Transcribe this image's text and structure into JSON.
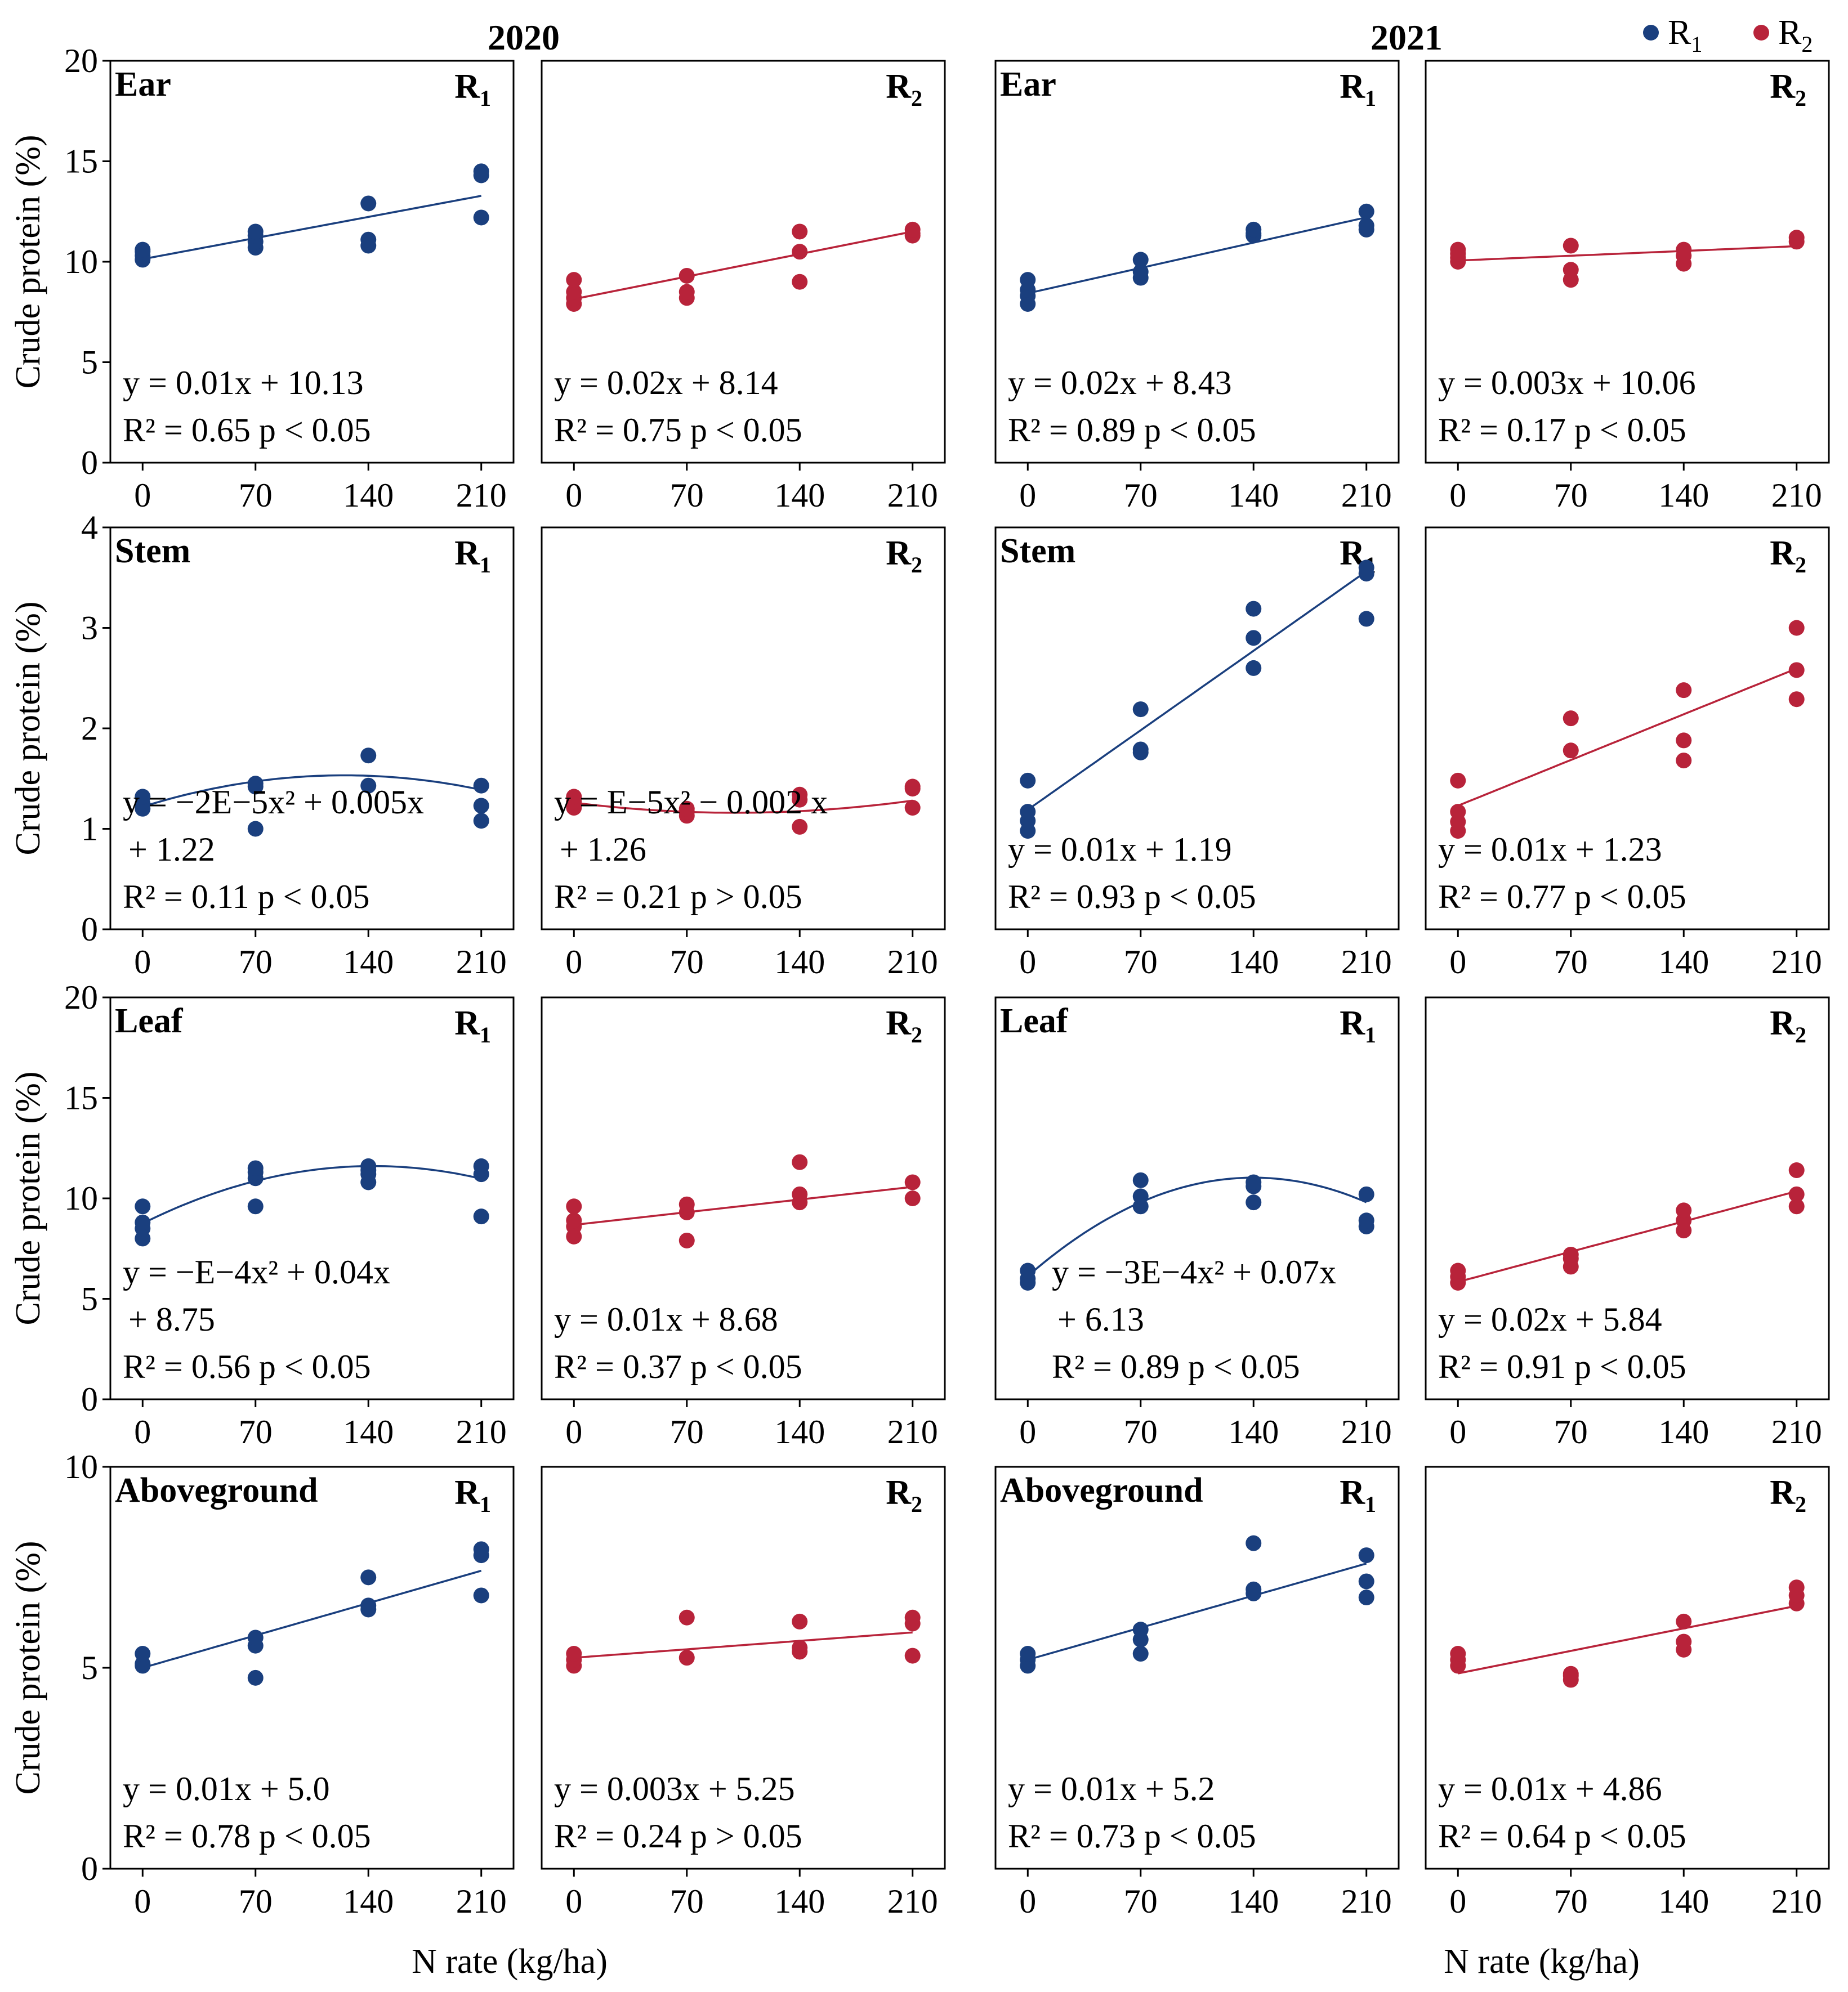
{
  "colors": {
    "R1": "#1a3f7e",
    "R2": "#b8233a"
  },
  "years": [
    "2020",
    "2021"
  ],
  "legend": [
    {
      "key": "R1",
      "label": "R",
      "sub": "1"
    },
    {
      "key": "R2",
      "label": "R",
      "sub": "2"
    }
  ],
  "x_axis_label": "N rate (kg/ha)",
  "y_axis_label": "Crude protein (%)",
  "x_ticks": [
    "0",
    "70",
    "140",
    "210"
  ],
  "rows": [
    {
      "title": "Ear",
      "ylim": [
        0,
        20
      ],
      "yticks": [
        "0",
        "5",
        "10",
        "15",
        "20"
      ]
    },
    {
      "title": "Stem",
      "ylim": [
        0,
        4
      ],
      "yticks": [
        "0",
        "1",
        "2",
        "3",
        "4"
      ]
    },
    {
      "title": "Leaf",
      "ylim": [
        0,
        20
      ],
      "yticks": [
        "0",
        "5",
        "10",
        "15",
        "20"
      ]
    },
    {
      "title": "Aboveground",
      "ylim": [
        0,
        10
      ],
      "yticks": [
        "0",
        "5",
        "10"
      ]
    }
  ],
  "chart_data": [
    {
      "type": "scatter",
      "year": "2020",
      "part": "Ear",
      "series": "R1",
      "x": [
        0,
        0,
        0,
        0,
        70,
        70,
        70,
        70,
        140,
        140,
        140,
        210,
        210,
        210
      ],
      "y": [
        10.1,
        10.3,
        10.5,
        10.6,
        10.7,
        11.0,
        11.3,
        11.5,
        10.8,
        11.1,
        12.9,
        12.2,
        14.3,
        14.5
      ],
      "fit": "linear",
      "coef": [
        10.13,
        0.015,
        0
      ],
      "eq": [
        "y = 0.01x + 10.13",
        "R² = 0.65  p < 0.05"
      ]
    },
    {
      "type": "scatter",
      "year": "2020",
      "part": "Ear",
      "series": "R2",
      "x": [
        0,
        0,
        0,
        0,
        70,
        70,
        70,
        140,
        140,
        140,
        210,
        210,
        210
      ],
      "y": [
        7.9,
        8.2,
        8.5,
        9.1,
        8.2,
        8.5,
        9.3,
        9.0,
        10.5,
        11.5,
        11.3,
        11.4,
        11.6
      ],
      "fit": "linear",
      "coef": [
        8.14,
        0.016,
        0
      ],
      "eq": [
        "y = 0.02x + 8.14",
        "R² = 0.75  p < 0.05"
      ]
    },
    {
      "type": "scatter",
      "year": "2021",
      "part": "Ear",
      "series": "R1",
      "x": [
        0,
        0,
        0,
        0,
        70,
        70,
        70,
        140,
        140,
        140,
        210,
        210,
        210
      ],
      "y": [
        7.9,
        8.3,
        8.6,
        9.1,
        9.2,
        9.5,
        10.1,
        11.3,
        11.4,
        11.6,
        11.6,
        11.8,
        12.5
      ],
      "fit": "linear",
      "coef": [
        8.43,
        0.018,
        0
      ],
      "eq": [
        "y = 0.02x + 8.43",
        "R² = 0.89  p < 0.05"
      ]
    },
    {
      "type": "scatter",
      "year": "2021",
      "part": "Ear",
      "series": "R2",
      "x": [
        0,
        0,
        0,
        0,
        70,
        70,
        70,
        140,
        140,
        140,
        210,
        210
      ],
      "y": [
        10.0,
        10.2,
        10.4,
        10.6,
        9.1,
        9.6,
        10.8,
        9.9,
        10.3,
        10.6,
        11.0,
        11.2
      ],
      "fit": "linear",
      "coef": [
        10.06,
        0.0034,
        0
      ],
      "eq": [
        "y = 0.003x + 10.06",
        "R² = 0.17  p < 0.05"
      ]
    },
    {
      "type": "scatter",
      "year": "2020",
      "part": "Stem",
      "series": "R1",
      "x": [
        0,
        0,
        0,
        70,
        70,
        70,
        140,
        140,
        210,
        210,
        210
      ],
      "y": [
        1.2,
        1.25,
        1.32,
        1.0,
        1.42,
        1.45,
        1.43,
        1.73,
        1.08,
        1.23,
        1.43
      ],
      "fit": "quadratic",
      "coef": [
        1.22,
        0.005,
        -2e-05
      ],
      "eq": [
        "y = −2E−5x² + 0.005x",
        "+ 1.22",
        "R² = 0.11  p < 0.05"
      ]
    },
    {
      "type": "scatter",
      "year": "2020",
      "part": "Stem",
      "series": "R2",
      "x": [
        0,
        0,
        0,
        70,
        70,
        70,
        140,
        140,
        140,
        210,
        210,
        210
      ],
      "y": [
        1.21,
        1.27,
        1.32,
        1.13,
        1.17,
        1.2,
        1.02,
        1.29,
        1.34,
        1.21,
        1.4,
        1.42
      ],
      "fit": "quadratic",
      "coef": [
        1.26,
        -0.002,
        1e-05
      ],
      "eq": [
        "y = E−5x² − 0.002 x",
        "+ 1.26",
        "R² = 0.21  p > 0.05"
      ]
    },
    {
      "type": "scatter",
      "year": "2021",
      "part": "Stem",
      "series": "R1",
      "x": [
        0,
        0,
        0,
        0,
        70,
        70,
        70,
        140,
        140,
        140,
        210,
        210,
        210
      ],
      "y": [
        0.98,
        1.08,
        1.17,
        1.48,
        1.76,
        1.79,
        2.19,
        2.6,
        2.9,
        3.19,
        3.09,
        3.54,
        3.6
      ],
      "fit": "linear",
      "coef": [
        1.19,
        0.0113,
        0
      ],
      "eq": [
        "y = 0.01x + 1.19",
        "R² = 0.93  p < 0.05"
      ]
    },
    {
      "type": "scatter",
      "year": "2021",
      "part": "Stem",
      "series": "R2",
      "x": [
        0,
        0,
        0,
        0,
        70,
        70,
        140,
        140,
        140,
        210,
        210,
        210
      ],
      "y": [
        0.98,
        1.07,
        1.17,
        1.48,
        1.78,
        2.1,
        1.68,
        1.88,
        2.38,
        2.29,
        2.58,
        3.0
      ],
      "fit": "linear",
      "coef": [
        1.23,
        0.0065,
        0
      ],
      "eq": [
        "y = 0.01x + 1.23",
        "R² = 0.77  p < 0.05"
      ]
    },
    {
      "type": "scatter",
      "year": "2020",
      "part": "Leaf",
      "series": "R1",
      "x": [
        0,
        0,
        0,
        0,
        70,
        70,
        70,
        70,
        140,
        140,
        140,
        140,
        210,
        210,
        210
      ],
      "y": [
        8.0,
        8.5,
        8.8,
        9.6,
        9.6,
        11.0,
        11.3,
        11.5,
        10.8,
        11.2,
        11.4,
        11.6,
        9.1,
        11.2,
        11.6
      ],
      "fit": "quadratic",
      "coef": [
        8.75,
        0.04,
        -0.00014
      ],
      "eq": [
        "y = −E−4x² + 0.04x",
        "+ 8.75",
        "R² = 0.56  p < 0.05"
      ]
    },
    {
      "type": "scatter",
      "year": "2020",
      "part": "Leaf",
      "series": "R2",
      "x": [
        0,
        0,
        0,
        0,
        70,
        70,
        70,
        140,
        140,
        140,
        210,
        210
      ],
      "y": [
        8.1,
        8.6,
        8.9,
        9.6,
        7.9,
        9.3,
        9.7,
        9.8,
        10.2,
        11.8,
        10.0,
        10.8
      ],
      "fit": "linear",
      "coef": [
        8.68,
        0.009,
        0
      ],
      "eq": [
        "y = 0.01x + 8.68",
        "R² = 0.37  p < 0.05"
      ]
    },
    {
      "type": "scatter",
      "year": "2021",
      "part": "Leaf",
      "series": "R1",
      "x": [
        0,
        0,
        0,
        70,
        70,
        70,
        140,
        140,
        140,
        210,
        210,
        210
      ],
      "y": [
        5.8,
        6.0,
        6.4,
        9.6,
        10.1,
        10.9,
        9.8,
        10.6,
        10.8,
        8.6,
        8.9,
        10.2
      ],
      "fit": "quadratic",
      "coef": [
        6.13,
        0.07,
        -0.00025
      ],
      "eq": [
        "y = −3E−4x² + 0.07x",
        "+ 6.13",
        "R² = 0.89  p < 0.05"
      ]
    },
    {
      "type": "scatter",
      "year": "2021",
      "part": "Leaf",
      "series": "R2",
      "x": [
        0,
        0,
        0,
        70,
        70,
        70,
        140,
        140,
        140,
        210,
        210,
        210
      ],
      "y": [
        5.8,
        6.1,
        6.4,
        6.6,
        7.0,
        7.2,
        8.4,
        8.9,
        9.4,
        9.6,
        10.2,
        11.4
      ],
      "fit": "linear",
      "coef": [
        5.84,
        0.0215,
        0
      ],
      "eq": [
        "y = 0.02x + 5.84",
        "R² = 0.91  p < 0.05"
      ]
    },
    {
      "type": "scatter",
      "year": "2020",
      "part": "Aboveground",
      "series": "R1",
      "x": [
        0,
        0,
        0,
        70,
        70,
        70,
        140,
        140,
        140,
        210,
        210,
        210
      ],
      "y": [
        5.05,
        5.1,
        5.35,
        4.75,
        5.55,
        5.75,
        6.45,
        6.55,
        7.25,
        6.8,
        7.8,
        7.95
      ],
      "fit": "linear",
      "coef": [
        5.0,
        0.0115,
        0
      ],
      "eq": [
        "y = 0.01x + 5.0",
        "R² = 0.78  p < 0.05"
      ]
    },
    {
      "type": "scatter",
      "year": "2020",
      "part": "Aboveground",
      "series": "R2",
      "x": [
        0,
        0,
        0,
        70,
        70,
        140,
        140,
        140,
        210,
        210,
        210
      ],
      "y": [
        5.05,
        5.2,
        5.35,
        5.25,
        6.25,
        5.4,
        5.5,
        6.15,
        5.3,
        6.1,
        6.25
      ],
      "fit": "linear",
      "coef": [
        5.25,
        0.003,
        0
      ],
      "eq": [
        "y = 0.003x + 5.25",
        "R² = 0.24  p > 0.05"
      ]
    },
    {
      "type": "scatter",
      "year": "2021",
      "part": "Aboveground",
      "series": "R1",
      "x": [
        0,
        0,
        0,
        70,
        70,
        70,
        140,
        140,
        140,
        210,
        210,
        210
      ],
      "y": [
        5.05,
        5.2,
        5.35,
        5.35,
        5.7,
        5.95,
        6.85,
        6.95,
        8.1,
        6.75,
        7.15,
        7.8
      ],
      "fit": "linear",
      "coef": [
        5.2,
        0.0114,
        0
      ],
      "eq": [
        "y = 0.01x + 5.2",
        "R² = 0.73  p < 0.05"
      ]
    },
    {
      "type": "scatter",
      "year": "2021",
      "part": "Aboveground",
      "series": "R2",
      "x": [
        0,
        0,
        0,
        70,
        70,
        70,
        140,
        140,
        140,
        210,
        210,
        210
      ],
      "y": [
        5.05,
        5.2,
        5.35,
        4.7,
        4.8,
        4.85,
        5.45,
        5.65,
        6.15,
        6.6,
        6.8,
        7.0
      ],
      "fit": "linear",
      "coef": [
        4.86,
        0.008,
        0
      ],
      "eq": [
        "y = 0.01x + 4.86",
        "R² = 0.64  p < 0.05"
      ]
    }
  ]
}
